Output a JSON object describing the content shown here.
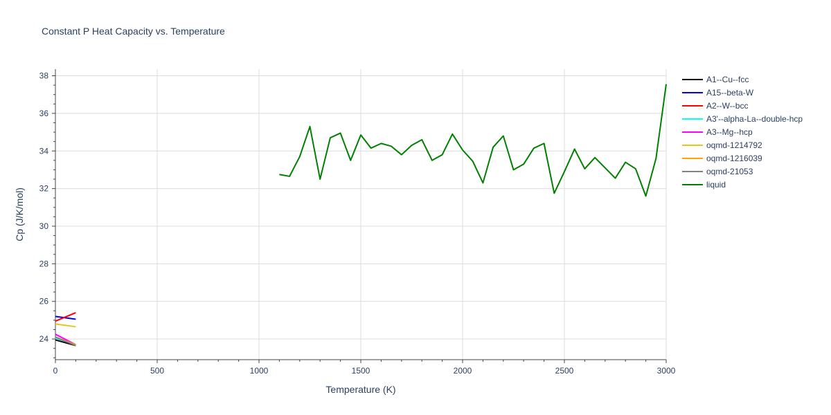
{
  "chart_data": {
    "type": "line",
    "title": "Constant P Heat Capacity vs. Temperature",
    "xlabel": "Temperature (K)",
    "ylabel": "Cp (J/K/mol)",
    "xlim": [
      0,
      3000
    ],
    "ylim": [
      22.9,
      38.35
    ],
    "xticks": [
      0,
      500,
      1000,
      1500,
      2000,
      2500,
      3000
    ],
    "yticks": [
      24,
      26,
      28,
      30,
      32,
      34,
      36,
      38
    ],
    "grid": true,
    "legend_position": "right",
    "series": [
      {
        "name": "A1--Cu--fcc",
        "color": "#000000",
        "x": [
          0,
          100
        ],
        "y": [
          23.95,
          23.65
        ]
      },
      {
        "name": "A15--beta-W",
        "color": "#0000ff",
        "x": [
          0,
          100
        ],
        "y": [
          25.2,
          25.05
        ]
      },
      {
        "name": "A2--W--bcc",
        "color": "#ff0000",
        "x": [
          0,
          100
        ],
        "y": [
          24.95,
          25.4
        ]
      },
      {
        "name": "A3'--alpha-La--double-hcp",
        "color": "#00ffff",
        "x": [
          0,
          100
        ],
        "y": [
          24.05,
          23.7
        ]
      },
      {
        "name": "A3--Mg--hcp",
        "color": "#ff00ff",
        "x": [
          0,
          100
        ],
        "y": [
          24.25,
          23.7
        ]
      },
      {
        "name": "oqmd-1214792",
        "color": "#e6c619",
        "x": [
          0,
          100
        ],
        "y": [
          24.8,
          24.65
        ]
      },
      {
        "name": "oqmd-1216039",
        "color": "#ffa500",
        "x": [
          0,
          100
        ],
        "y": [
          24.1,
          23.7
        ]
      },
      {
        "name": "oqmd-21053",
        "color": "#808080",
        "x": [
          0,
          100
        ],
        "y": [
          24.1,
          23.65
        ]
      },
      {
        "name": "liquid",
        "color": "#008000",
        "x": [
          1100,
          1150,
          1200,
          1250,
          1300,
          1350,
          1400,
          1450,
          1500,
          1550,
          1600,
          1650,
          1700,
          1750,
          1800,
          1850,
          1900,
          1950,
          2000,
          2050,
          2100,
          2150,
          2200,
          2250,
          2300,
          2350,
          2400,
          2450,
          2500,
          2550,
          2600,
          2650,
          2700,
          2750,
          2800,
          2850,
          2900,
          2950,
          3000
        ],
        "y": [
          32.75,
          32.65,
          33.7,
          35.3,
          32.5,
          34.7,
          34.95,
          33.5,
          34.85,
          34.15,
          34.4,
          34.25,
          33.8,
          34.3,
          34.6,
          33.5,
          33.8,
          34.9,
          34.05,
          33.45,
          32.3,
          34.2,
          34.8,
          33.0,
          33.3,
          34.15,
          34.4,
          31.75,
          32.9,
          34.1,
          33.05,
          33.65,
          33.1,
          32.55,
          33.4,
          33.05,
          31.6,
          33.6,
          37.55
        ]
      }
    ]
  }
}
